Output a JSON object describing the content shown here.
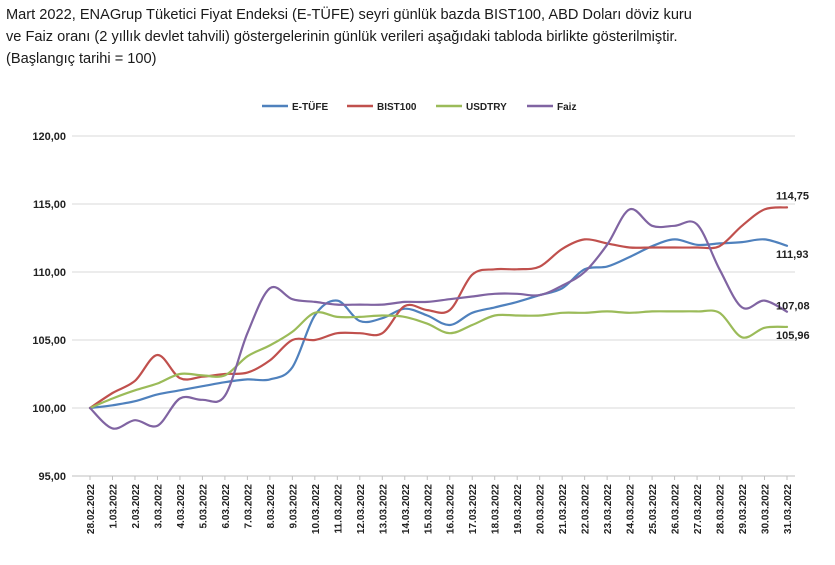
{
  "intro": {
    "line1": "Mart 2022, ENAGrup Tüketici Fiyat Endeksi (E-TÜFE) seyri günlük bazda BIST100, ABD Doları döviz kuru",
    "line2": "ve Faiz oranı (2 yıllık devlet tahvili) göstergelerinin günlük verileri aşağıdaki tabloda birlikte gösterilmiştir.",
    "line3": "(Başlangıç tarihi = 100)"
  },
  "chart_data": {
    "type": "line",
    "categories": [
      "28.02.2022",
      "1.03.2022",
      "2.03.2022",
      "3.03.2022",
      "4.03.2022",
      "5.03.2022",
      "6.03.2022",
      "7.03.2022",
      "8.03.2022",
      "9.03.2022",
      "10.03.2022",
      "11.03.2022",
      "12.03.2022",
      "13.03.2022",
      "14.03.2022",
      "15.03.2022",
      "16.03.2022",
      "17.03.2022",
      "18.03.2022",
      "19.03.2022",
      "20.03.2022",
      "21.03.2022",
      "22.03.2022",
      "23.03.2022",
      "24.03.2022",
      "25.03.2022",
      "26.03.2022",
      "27.03.2022",
      "28.03.2022",
      "29.03.2022",
      "30.03.2022",
      "31.03.2022"
    ],
    "ylim": [
      95,
      120
    ],
    "yticks": [
      "95,00",
      "100,00",
      "105,00",
      "110,00",
      "115,00",
      "120,00"
    ],
    "ytick_values": [
      95,
      100,
      105,
      110,
      115,
      120
    ],
    "grid": true,
    "legend_position": "top",
    "series": [
      {
        "name": "E-TÜFE",
        "color": "#4f81bd",
        "values": [
          100,
          100.2,
          100.5,
          101.0,
          101.3,
          101.6,
          101.9,
          102.1,
          102.1,
          103.0,
          106.8,
          107.9,
          106.4,
          106.6,
          107.3,
          106.8,
          106.1,
          107.0,
          107.4,
          107.8,
          108.3,
          108.8,
          110.2,
          110.4,
          111.1,
          111.9,
          112.4,
          112.0,
          112.1,
          112.2,
          112.4,
          111.93
        ],
        "end_label": "111,93"
      },
      {
        "name": "BIST100",
        "color": "#c0504d",
        "values": [
          100,
          101.1,
          102.0,
          103.9,
          102.2,
          102.3,
          102.5,
          102.6,
          103.5,
          105.0,
          105.0,
          105.5,
          105.5,
          105.5,
          107.5,
          107.2,
          107.2,
          109.8,
          110.2,
          110.2,
          110.4,
          111.7,
          112.4,
          112.1,
          111.8,
          111.8,
          111.8,
          111.8,
          111.9,
          113.4,
          114.6,
          114.75
        ],
        "end_label": "114,75"
      },
      {
        "name": "USDTRY",
        "color": "#9bbb59",
        "values": [
          100,
          100.7,
          101.3,
          101.8,
          102.5,
          102.4,
          102.4,
          103.8,
          104.6,
          105.6,
          107.0,
          106.7,
          106.7,
          106.8,
          106.7,
          106.2,
          105.5,
          106.1,
          106.8,
          106.8,
          106.8,
          107.0,
          107.0,
          107.1,
          107.0,
          107.1,
          107.1,
          107.1,
          107.0,
          105.2,
          105.9,
          105.96
        ],
        "end_label": "105,96"
      },
      {
        "name": "Faiz",
        "color": "#8064a2",
        "values": [
          100,
          98.5,
          99.1,
          98.7,
          100.7,
          100.6,
          100.9,
          105.5,
          108.8,
          108.0,
          107.8,
          107.6,
          107.6,
          107.6,
          107.8,
          107.8,
          108.0,
          108.2,
          108.4,
          108.4,
          108.3,
          109.0,
          110.0,
          112.0,
          114.6,
          113.4,
          113.4,
          113.5,
          110.2,
          107.4,
          107.9,
          107.08
        ],
        "end_label": "107,08"
      }
    ]
  }
}
